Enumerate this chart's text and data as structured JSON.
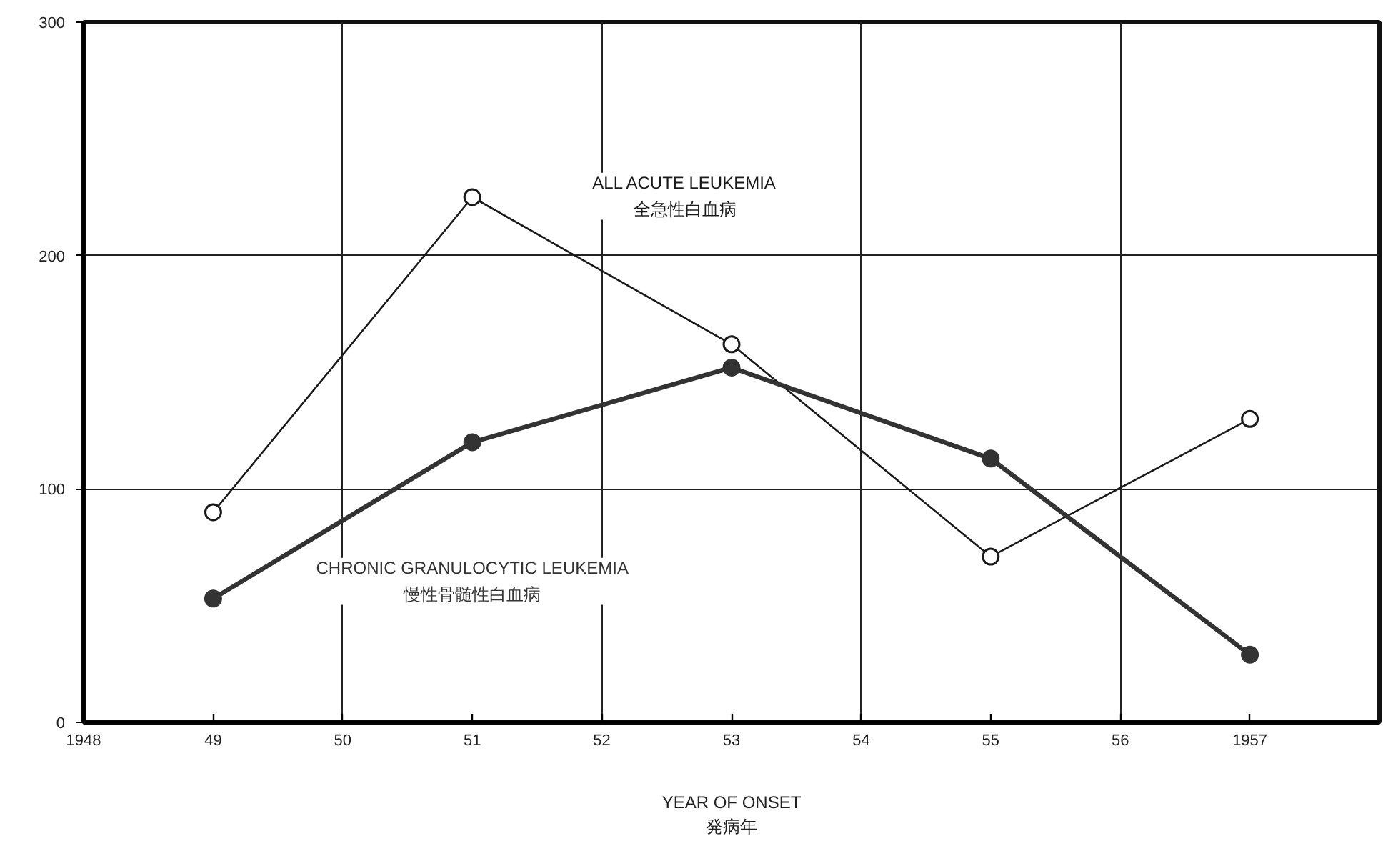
{
  "chart_data": {
    "type": "line",
    "xlabel": "YEAR OF ONSET\n発病年",
    "x": [
      1949,
      1951,
      1953,
      1955,
      1957
    ],
    "series": [
      {
        "name": "ALL ACUTE LEUKEMIA\n全急性白血病",
        "color": "#1a1a1a",
        "values": [
          90,
          225,
          162,
          71,
          130
        ]
      },
      {
        "name": "CHRONIC GRANULOCYTIC LEUKEMIA\n慢性骨髄性白血病",
        "color": "#333333",
        "values": [
          53,
          120,
          152,
          113,
          29
        ]
      }
    ],
    "xlim": [
      1948,
      1958
    ],
    "xticks": [
      1948,
      {
        "value": 1949,
        "label": "49"
      },
      {
        "value": 1950,
        "label": "50"
      },
      {
        "value": 1951,
        "label": "51"
      },
      {
        "value": 1952,
        "label": "52"
      },
      {
        "value": 1953,
        "label": "53"
      },
      {
        "value": 1954,
        "label": "54"
      },
      {
        "value": 1955,
        "label": "55"
      },
      {
        "value": 1956,
        "label": "56"
      },
      1957
    ],
    "ylim": [
      0,
      300
    ],
    "yticks": [
      0,
      100,
      200,
      300
    ],
    "grid": true,
    "marker": "circle",
    "line_style": "solid"
  }
}
